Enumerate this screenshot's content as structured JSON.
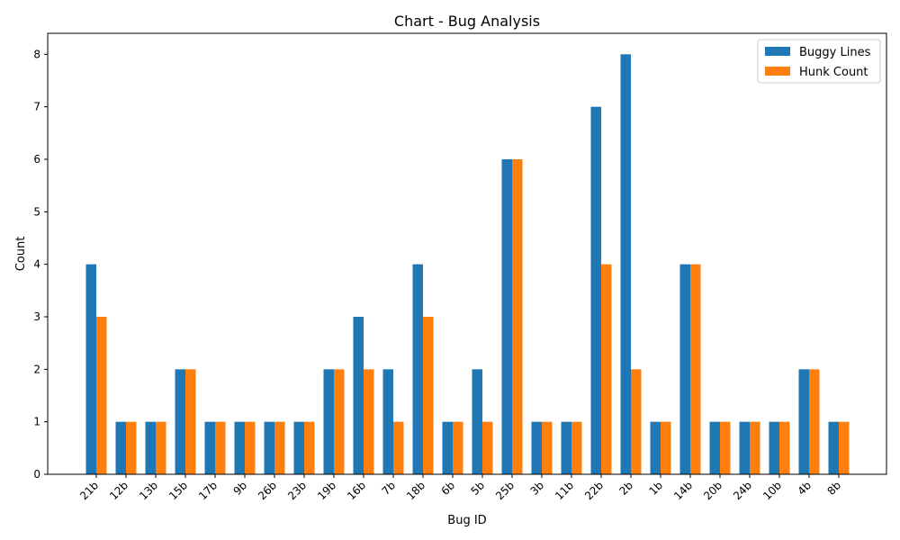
{
  "chart_data": {
    "type": "bar",
    "title": "Chart - Bug Analysis",
    "xlabel": "Bug ID",
    "ylabel": "Count",
    "ylim": [
      0,
      8.4
    ],
    "yticks": [
      0,
      1,
      2,
      3,
      4,
      5,
      6,
      7,
      8
    ],
    "categories": [
      "21b",
      "12b",
      "13b",
      "15b",
      "17b",
      "9b",
      "26b",
      "23b",
      "19b",
      "16b",
      "7b",
      "18b",
      "6b",
      "5b",
      "25b",
      "3b",
      "11b",
      "22b",
      "2b",
      "1b",
      "14b",
      "20b",
      "24b",
      "10b",
      "4b",
      "8b"
    ],
    "series": [
      {
        "name": "Buggy Lines",
        "color": "#1f77b4",
        "values": [
          4,
          1,
          1,
          2,
          1,
          1,
          1,
          1,
          2,
          3,
          2,
          4,
          1,
          2,
          6,
          1,
          1,
          7,
          8,
          1,
          4,
          1,
          1,
          1,
          2,
          1
        ]
      },
      {
        "name": "Hunk Count",
        "color": "#ff7f0e",
        "values": [
          3,
          1,
          1,
          2,
          1,
          1,
          1,
          1,
          2,
          2,
          1,
          3,
          1,
          1,
          6,
          1,
          1,
          4,
          2,
          1,
          4,
          1,
          1,
          1,
          2,
          1
        ]
      }
    ],
    "legend_position": "top-right",
    "grid": false
  }
}
